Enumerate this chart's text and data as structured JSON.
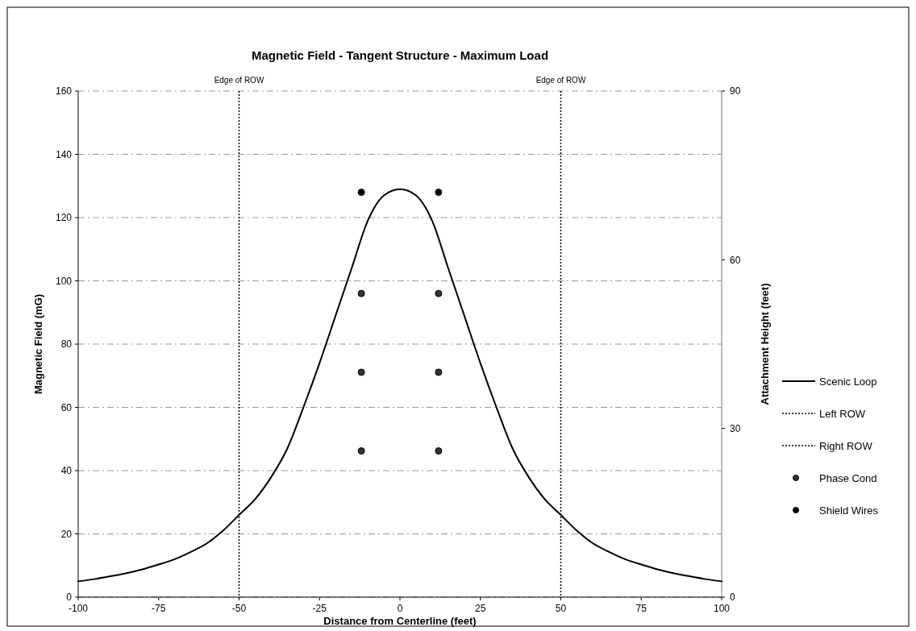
{
  "chart_data": {
    "type": "line",
    "title": "Magnetic Field - Tangent Structure - Maximum Load",
    "xlabel": "Distance from Centerline (feet)",
    "ylabel": "Magnetic Field (mG)",
    "y2label": "Attachment Height (feet)",
    "xlim": [
      -100,
      100
    ],
    "xticks": [
      -100,
      -75,
      -50,
      -25,
      0,
      25,
      50,
      75,
      100
    ],
    "ylim": [
      0,
      160
    ],
    "yticks": [
      0,
      20,
      40,
      60,
      80,
      100,
      120,
      140,
      160
    ],
    "y2lim": [
      0,
      90
    ],
    "y2ticks": [
      0,
      30,
      60,
      90
    ],
    "grid": "y",
    "legend": "right",
    "series": [
      {
        "name": "Scenic Loop",
        "color": "#000000",
        "line_style": "solid",
        "x": [
          -100,
          -95,
          -90,
          -85,
          -80,
          -75,
          -70,
          -65,
          -60,
          -55,
          -50,
          -45,
          -40,
          -35,
          -30,
          -25,
          -20,
          -15,
          -10,
          -5,
          0,
          5,
          10,
          15,
          20,
          25,
          30,
          35,
          40,
          45,
          50,
          55,
          60,
          65,
          70,
          75,
          80,
          85,
          90,
          95,
          100
        ],
        "values": [
          5,
          5.7,
          6.6,
          7.6,
          8.8,
          10.3,
          12,
          14.3,
          17,
          21,
          26,
          31,
          38,
          47,
          60,
          74,
          89,
          104,
          119,
          127,
          129,
          127,
          119,
          104,
          89,
          74,
          60,
          47,
          38,
          31,
          26,
          21,
          17,
          14.3,
          12,
          10.3,
          8.8,
          7.6,
          6.6,
          5.7,
          5
        ]
      },
      {
        "name": "Phase Cond",
        "type": "scatter",
        "axis": "y2",
        "color": "#333333",
        "marker": "circle",
        "x": [
          -12,
          12,
          -12,
          12,
          -12,
          12
        ],
        "values": [
          54,
          54,
          40,
          40,
          26,
          26
        ]
      },
      {
        "name": "Shield Wires",
        "type": "scatter",
        "axis": "y2",
        "color": "#000000",
        "marker": "circle",
        "x": [
          -12,
          12
        ],
        "values": [
          72,
          72
        ]
      }
    ],
    "ref_lines": [
      {
        "axis": "x",
        "value": -50,
        "label": "Edge of ROW",
        "color": "#000000",
        "line_style": "dotted"
      },
      {
        "axis": "x",
        "value": 50,
        "label": "Edge of ROW",
        "color": "#000000",
        "line_style": "dotted"
      }
    ],
    "annotations": [
      "Left ROW",
      "Right ROW"
    ]
  }
}
